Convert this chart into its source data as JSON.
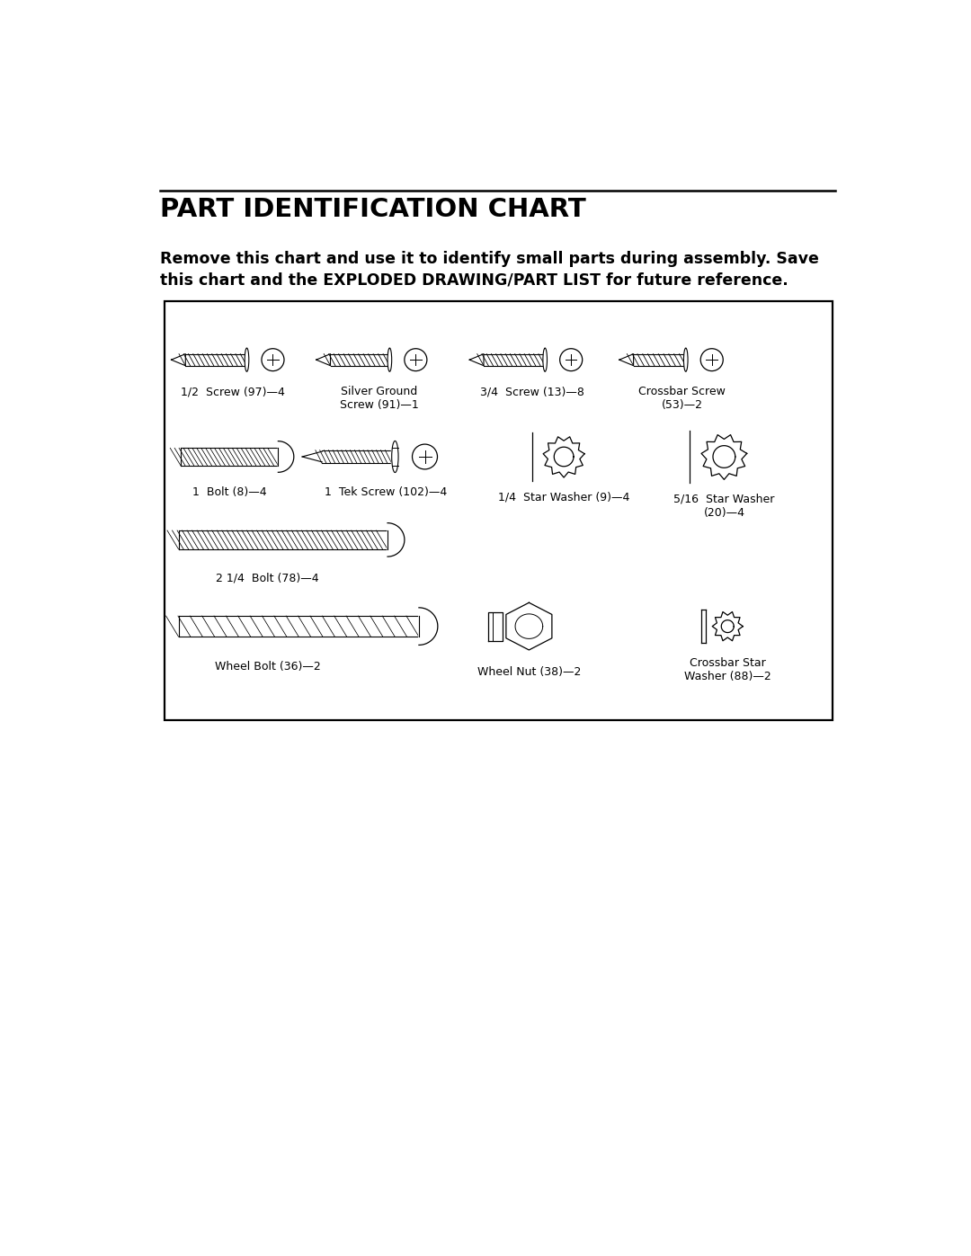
{
  "title": "PART IDENTIFICATION CHART",
  "subtitle": "Remove this chart and use it to identify small parts during assembly. Save\nthis chart and the EXPLODED DRAWING/PART LIST for future reference.",
  "parts": [
    {
      "label": "1/2  Screw (97)—4"
    },
    {
      "label": "Silver Ground\nScrew (91)—1"
    },
    {
      "label": "3/4  Screw (13)—8"
    },
    {
      "label": "Crossbar Screw\n(53)—2"
    },
    {
      "label": "1  Bolt (8)—4"
    },
    {
      "label": "1  Tek Screw (102)—4"
    },
    {
      "label": "1/4  Star Washer (9)—4"
    },
    {
      "label": "5/16  Star Washer\n(20)—4"
    },
    {
      "label": "2 1/4  Bolt (78)—4"
    },
    {
      "label": "Wheel Bolt (36)—2"
    },
    {
      "label": "Wheel Nut (38)—2"
    },
    {
      "label": "Crossbar Star\nWasher (88)—2"
    }
  ],
  "bg_color": "#ffffff",
  "text_color": "#000000",
  "fig_width": 10.8,
  "fig_height": 13.97,
  "dpi": 100
}
